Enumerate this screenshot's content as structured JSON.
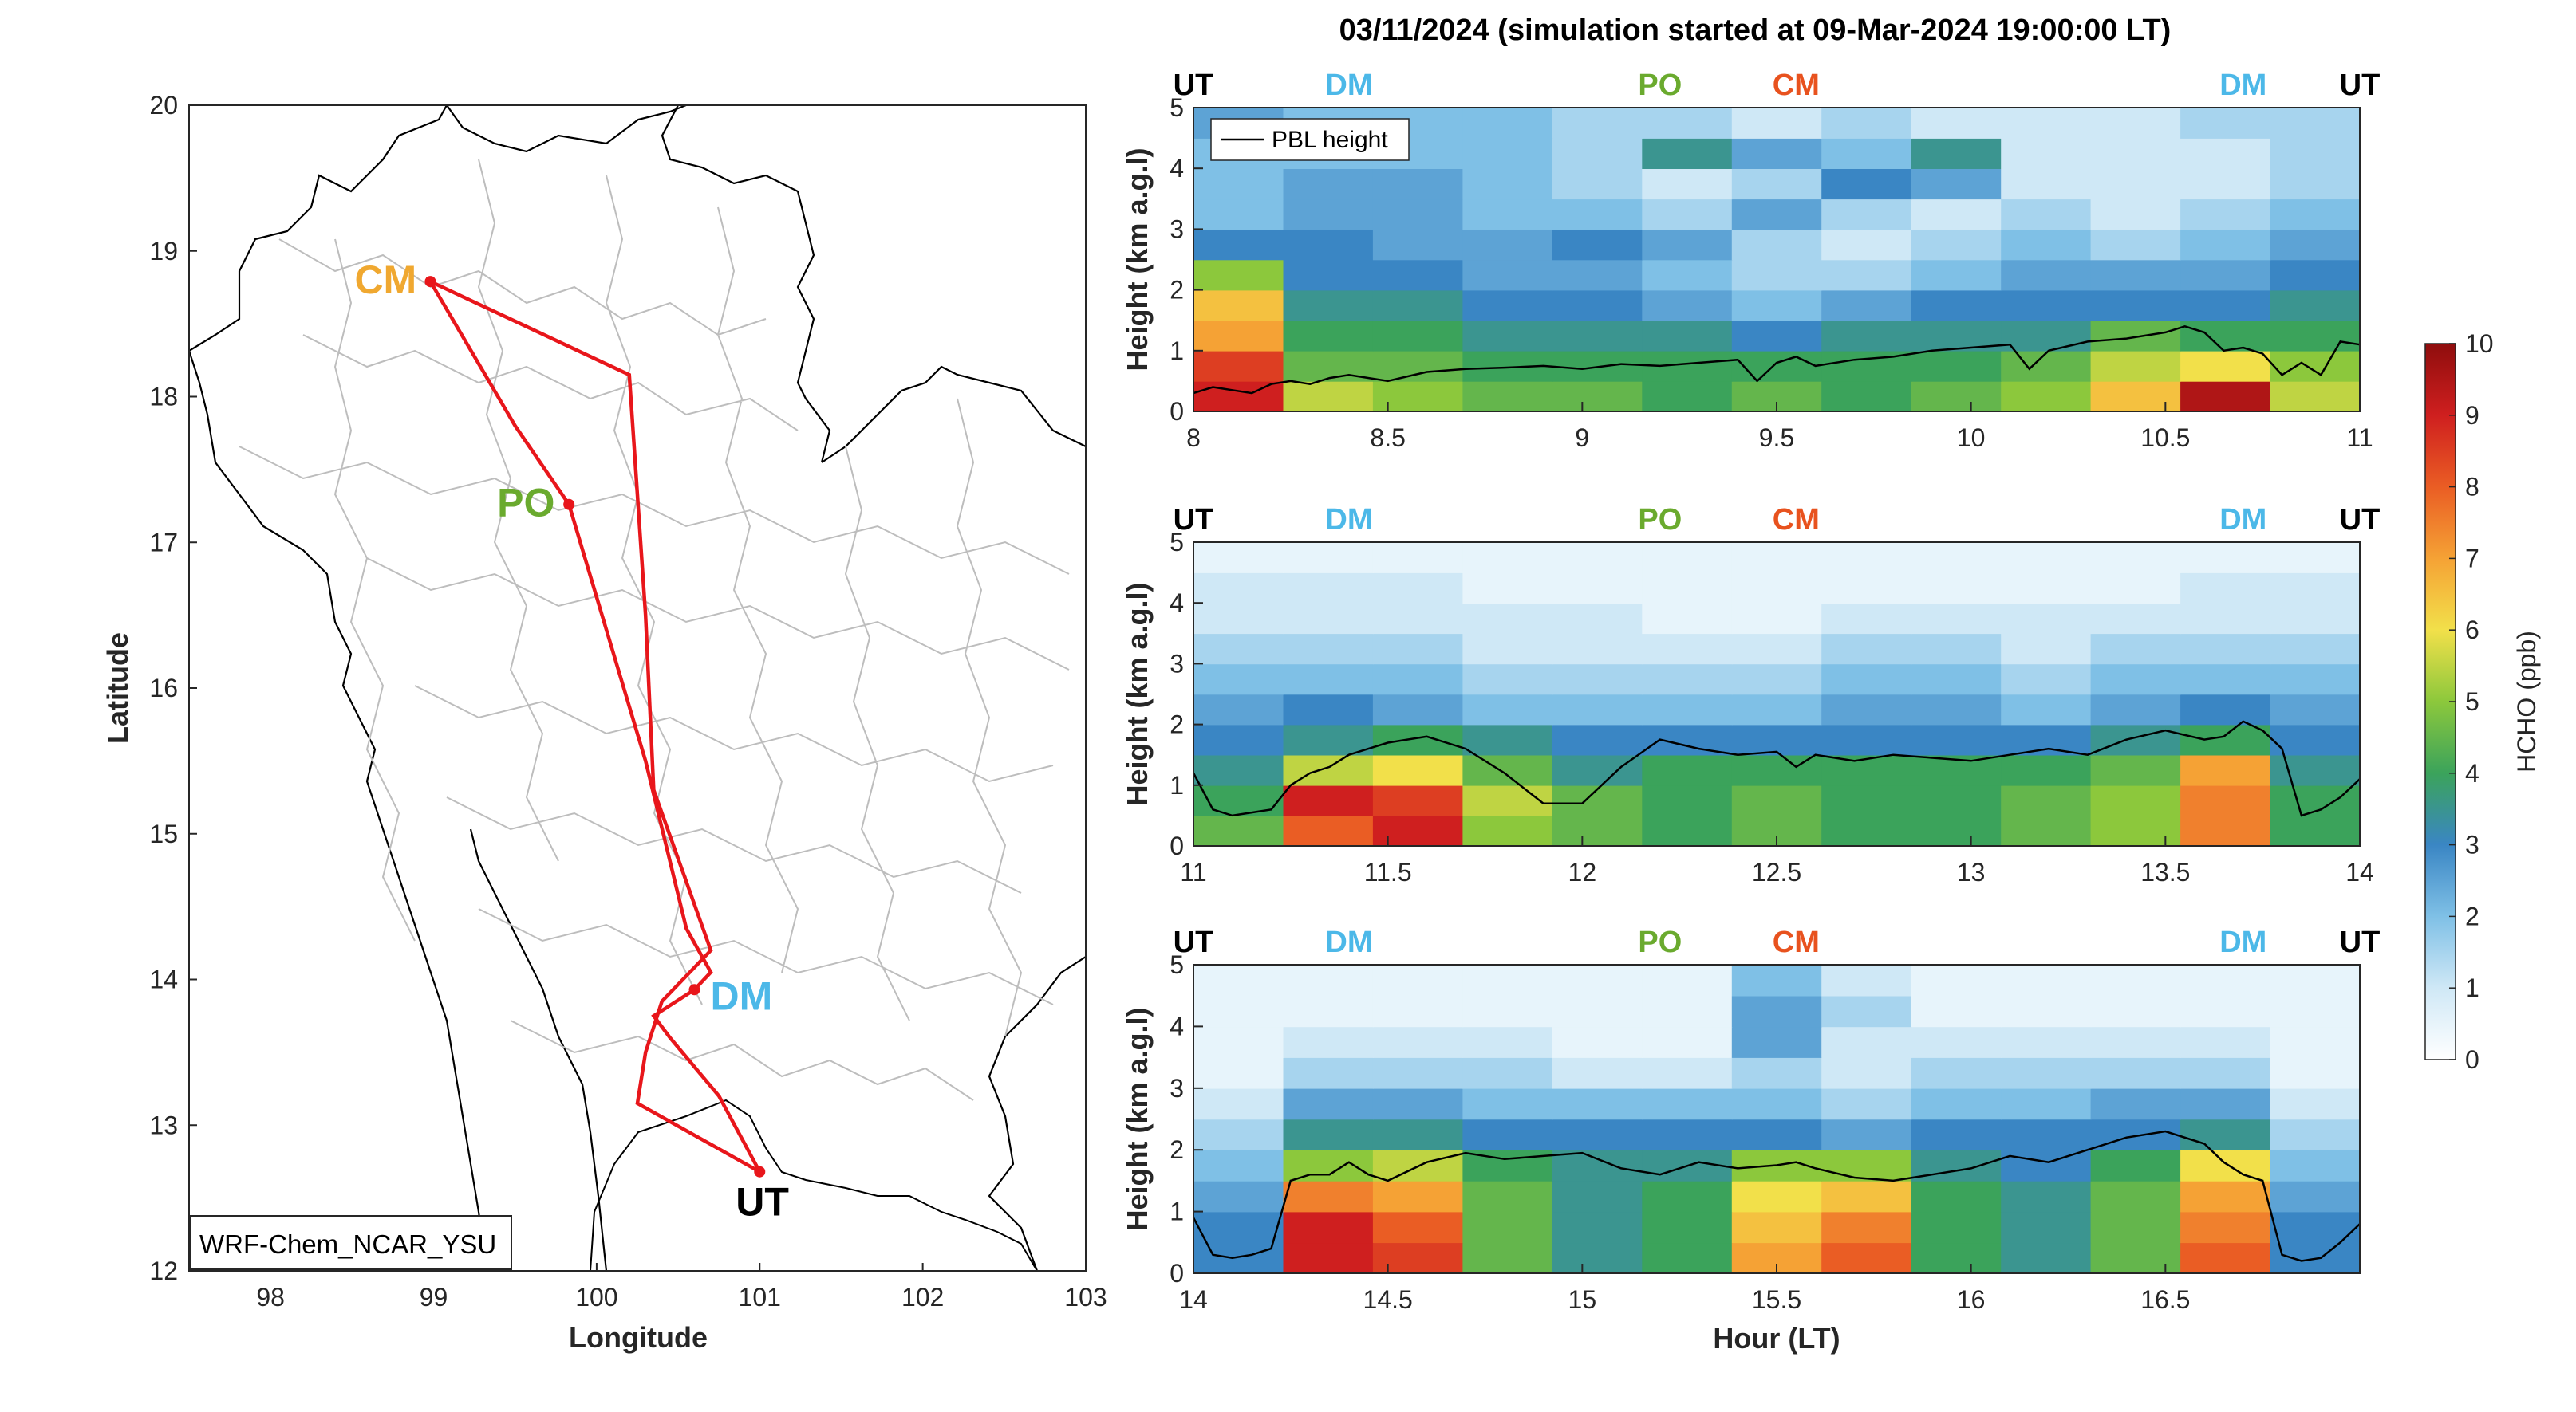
{
  "title": "03/11/2024 (simulation started at 09-Mar-2024 19:00:00 LT)",
  "colors": {
    "route": "#e8161b",
    "CM": "#f0a830",
    "PO": "#6aaa2e",
    "DM": "#4cb8e8",
    "UT": "#000000",
    "CM_top": "#e8521e"
  },
  "map": {
    "xlabel": "Longitude",
    "ylabel": "Latitude",
    "xticks": [
      "98",
      "99",
      "100",
      "101",
      "102",
      "103"
    ],
    "yticks": [
      "12",
      "13",
      "14",
      "15",
      "16",
      "17",
      "18",
      "19",
      "20"
    ],
    "xlim": [
      97.5,
      103
    ],
    "ylim": [
      12,
      20
    ],
    "model_label": "WRF-Chem_NCAR_YSU",
    "sites": [
      {
        "name": "CM",
        "lon": 98.98,
        "lat": 18.79
      },
      {
        "name": "PO",
        "lon": 99.83,
        "lat": 17.26
      },
      {
        "name": "DM",
        "lon": 100.6,
        "lat": 13.93
      },
      {
        "name": "UT",
        "lon": 101.0,
        "lat": 12.68
      }
    ]
  },
  "route_label_row": [
    "UT",
    "DM",
    "PO",
    "CM",
    "DM",
    "UT"
  ],
  "colorbar": {
    "label": "HCHO (ppb)",
    "ticks": [
      "0",
      "1",
      "2",
      "3",
      "4",
      "5",
      "6",
      "7",
      "8",
      "9",
      "10"
    ],
    "range": [
      0,
      10
    ]
  },
  "chart_data": [
    {
      "type": "heatmap",
      "ylabel": "Height (km a.g.l)",
      "xlabel": "",
      "xlim": [
        8,
        11
      ],
      "ylim": [
        0,
        5
      ],
      "xticks": [
        "8",
        "8.5",
        "9",
        "9.5",
        "10",
        "10.5",
        "11"
      ],
      "yticks": [
        "0",
        "1",
        "2",
        "3",
        "4",
        "5"
      ],
      "legend": "PBL height",
      "route_labels": [
        {
          "name": "UT",
          "hour": 8.0
        },
        {
          "name": "DM",
          "hour": 8.4
        },
        {
          "name": "PO",
          "hour": 9.2
        },
        {
          "name": "CM",
          "hour": 9.55
        },
        {
          "name": "DM",
          "hour": 10.7
        },
        {
          "name": "UT",
          "hour": 11.0
        }
      ],
      "pbl": {
        "hours": [
          8.0,
          8.05,
          8.1,
          8.15,
          8.2,
          8.25,
          8.3,
          8.35,
          8.4,
          8.5,
          8.6,
          8.7,
          8.8,
          8.9,
          9.0,
          9.1,
          9.2,
          9.3,
          9.4,
          9.45,
          9.5,
          9.55,
          9.6,
          9.7,
          9.8,
          9.9,
          10.0,
          10.1,
          10.15,
          10.2,
          10.3,
          10.4,
          10.5,
          10.55,
          10.6,
          10.65,
          10.7,
          10.75,
          10.8,
          10.85,
          10.9,
          10.95,
          11.0
        ],
        "heights_km": [
          0.3,
          0.4,
          0.35,
          0.3,
          0.45,
          0.5,
          0.45,
          0.55,
          0.6,
          0.5,
          0.65,
          0.7,
          0.72,
          0.75,
          0.7,
          0.78,
          0.75,
          0.8,
          0.85,
          0.5,
          0.8,
          0.9,
          0.75,
          0.85,
          0.9,
          1.0,
          1.05,
          1.1,
          0.7,
          1.0,
          1.15,
          1.2,
          1.3,
          1.4,
          1.3,
          1.0,
          1.05,
          0.95,
          0.6,
          0.8,
          0.6,
          1.15,
          1.1
        ]
      },
      "hcho_ppb": {
        "hours": [
          8.0,
          8.25,
          8.5,
          8.75,
          9.0,
          9.25,
          9.5,
          9.75,
          10.0,
          10.25,
          10.5,
          10.75,
          11.0
        ],
        "heights_km": [
          0.25,
          0.75,
          1.25,
          1.75,
          2.25,
          2.75,
          3.25,
          3.75,
          4.25,
          4.75
        ],
        "values": [
          [
            9.0,
            5.5,
            5.0,
            4.5,
            4.5,
            4.0,
            4.5,
            4.0,
            4.5,
            5.0,
            6.5,
            9.5,
            5.5
          ],
          [
            8.5,
            4.5,
            4.5,
            4.0,
            4.0,
            4.0,
            4.0,
            4.0,
            4.0,
            4.5,
            5.5,
            6.0,
            5.0
          ],
          [
            7.0,
            4.0,
            4.0,
            3.5,
            3.5,
            3.5,
            3.0,
            3.5,
            3.5,
            3.5,
            4.5,
            4.0,
            4.0
          ],
          [
            6.5,
            3.5,
            3.5,
            3.0,
            3.0,
            2.5,
            2.0,
            2.5,
            3.0,
            3.0,
            3.0,
            3.0,
            3.5
          ],
          [
            5.0,
            3.0,
            3.0,
            2.5,
            2.5,
            2.0,
            1.5,
            1.5,
            2.0,
            2.5,
            2.5,
            2.5,
            3.0
          ],
          [
            3.0,
            3.0,
            2.5,
            2.5,
            3.0,
            2.5,
            1.5,
            1.0,
            1.5,
            2.0,
            1.5,
            2.0,
            2.5
          ],
          [
            2.0,
            2.5,
            2.5,
            2.0,
            2.0,
            1.5,
            2.5,
            1.5,
            1.0,
            1.5,
            1.0,
            1.5,
            2.0
          ],
          [
            2.0,
            2.5,
            2.5,
            2.0,
            1.5,
            1.0,
            1.5,
            3.0,
            2.5,
            1.0,
            1.0,
            1.0,
            1.5
          ],
          [
            2.0,
            2.0,
            2.0,
            2.0,
            1.5,
            3.5,
            2.5,
            2.0,
            3.5,
            1.0,
            1.0,
            1.0,
            1.5
          ],
          [
            2.5,
            2.0,
            2.0,
            2.0,
            1.5,
            1.5,
            1.0,
            1.5,
            1.0,
            1.0,
            1.0,
            1.5,
            1.5
          ]
        ]
      }
    },
    {
      "type": "heatmap",
      "ylabel": "Height (km a.g.l)",
      "xlabel": "",
      "xlim": [
        11,
        14
      ],
      "ylim": [
        0,
        5
      ],
      "xticks": [
        "11",
        "11.5",
        "12",
        "12.5",
        "13",
        "13.5",
        "14"
      ],
      "yticks": [
        "0",
        "1",
        "2",
        "3",
        "4",
        "5"
      ],
      "route_labels": [
        {
          "name": "UT",
          "hour": 11.0
        },
        {
          "name": "DM",
          "hour": 11.4
        },
        {
          "name": "PO",
          "hour": 12.2
        },
        {
          "name": "CM",
          "hour": 12.55
        },
        {
          "name": "DM",
          "hour": 13.7
        },
        {
          "name": "UT",
          "hour": 14.0
        }
      ],
      "pbl": {
        "hours": [
          11.0,
          11.05,
          11.1,
          11.15,
          11.2,
          11.25,
          11.3,
          11.35,
          11.4,
          11.45,
          11.5,
          11.6,
          11.7,
          11.8,
          11.9,
          12.0,
          12.1,
          12.2,
          12.3,
          12.4,
          12.5,
          12.55,
          12.6,
          12.7,
          12.8,
          12.9,
          13.0,
          13.1,
          13.2,
          13.3,
          13.4,
          13.5,
          13.6,
          13.65,
          13.7,
          13.75,
          13.8,
          13.85,
          13.9,
          13.95,
          14.0
        ],
        "heights_km": [
          1.2,
          0.6,
          0.5,
          0.55,
          0.6,
          1.0,
          1.2,
          1.3,
          1.5,
          1.6,
          1.7,
          1.8,
          1.6,
          1.2,
          0.7,
          0.7,
          1.3,
          1.75,
          1.6,
          1.5,
          1.55,
          1.3,
          1.5,
          1.4,
          1.5,
          1.45,
          1.4,
          1.5,
          1.6,
          1.5,
          1.75,
          1.9,
          1.75,
          1.8,
          2.05,
          1.9,
          1.6,
          0.5,
          0.6,
          0.8,
          1.1
        ]
      },
      "hcho_ppb": {
        "hours": [
          11.0,
          11.25,
          11.5,
          11.75,
          12.0,
          12.25,
          12.5,
          12.75,
          13.0,
          13.25,
          13.5,
          13.75,
          14.0
        ],
        "heights_km": [
          0.25,
          0.75,
          1.25,
          1.75,
          2.25,
          2.75,
          3.25,
          3.75,
          4.25,
          4.75
        ],
        "values": [
          [
            4.5,
            8.0,
            9.0,
            5.0,
            4.5,
            4.0,
            4.5,
            4.0,
            4.0,
            4.5,
            5.0,
            7.5,
            4.0
          ],
          [
            4.0,
            9.0,
            8.5,
            5.5,
            4.5,
            4.0,
            4.5,
            4.0,
            4.0,
            4.5,
            5.0,
            7.5,
            4.0
          ],
          [
            3.5,
            5.5,
            6.0,
            4.5,
            3.5,
            4.0,
            4.0,
            4.0,
            4.0,
            4.0,
            4.5,
            7.0,
            3.5
          ],
          [
            3.0,
            3.5,
            4.0,
            3.5,
            3.0,
            3.0,
            3.0,
            3.0,
            3.0,
            3.0,
            3.5,
            4.0,
            3.0
          ],
          [
            2.5,
            3.0,
            2.5,
            2.0,
            2.0,
            2.0,
            2.0,
            2.5,
            2.5,
            2.0,
            2.5,
            3.0,
            2.5
          ],
          [
            2.0,
            2.0,
            2.0,
            1.5,
            1.5,
            1.5,
            1.5,
            2.0,
            2.0,
            1.5,
            2.0,
            2.0,
            2.0
          ],
          [
            1.5,
            1.5,
            1.5,
            1.0,
            1.0,
            1.0,
            1.0,
            1.5,
            1.5,
            1.0,
            1.5,
            1.5,
            1.5
          ],
          [
            1.0,
            1.0,
            1.0,
            1.0,
            1.0,
            0.5,
            0.5,
            1.0,
            1.0,
            1.0,
            1.0,
            1.0,
            1.0
          ],
          [
            1.0,
            1.0,
            1.0,
            0.5,
            0.5,
            0.5,
            0.5,
            0.5,
            0.5,
            0.5,
            0.5,
            1.0,
            1.0
          ],
          [
            0.5,
            0.5,
            0.5,
            0.5,
            0.5,
            0.5,
            0.5,
            0.5,
            0.5,
            0.5,
            0.5,
            0.5,
            0.5
          ]
        ]
      }
    },
    {
      "type": "heatmap",
      "ylabel": "Height (km a.g.l)",
      "xlabel": "Hour (LT)",
      "xlim": [
        14,
        17
      ],
      "ylim": [
        0,
        5
      ],
      "xticks": [
        "14",
        "14.5",
        "15",
        "15.5",
        "16",
        "16.5"
      ],
      "yticks": [
        "0",
        "1",
        "2",
        "3",
        "4",
        "5"
      ],
      "route_labels": [
        {
          "name": "UT",
          "hour": 14.0
        },
        {
          "name": "DM",
          "hour": 14.4
        },
        {
          "name": "PO",
          "hour": 15.2
        },
        {
          "name": "CM",
          "hour": 15.55
        },
        {
          "name": "DM",
          "hour": 16.7
        },
        {
          "name": "UT",
          "hour": 17.0
        }
      ],
      "pbl": {
        "hours": [
          14.0,
          14.05,
          14.1,
          14.15,
          14.2,
          14.25,
          14.3,
          14.35,
          14.4,
          14.45,
          14.5,
          14.6,
          14.7,
          14.8,
          14.9,
          15.0,
          15.1,
          15.2,
          15.3,
          15.4,
          15.5,
          15.55,
          15.6,
          15.7,
          15.8,
          15.9,
          16.0,
          16.1,
          16.2,
          16.3,
          16.4,
          16.5,
          16.6,
          16.65,
          16.7,
          16.75,
          16.8,
          16.85,
          16.9,
          16.95,
          17.0
        ],
        "heights_km": [
          0.9,
          0.3,
          0.25,
          0.3,
          0.4,
          1.5,
          1.6,
          1.6,
          1.8,
          1.6,
          1.5,
          1.8,
          1.95,
          1.85,
          1.9,
          1.95,
          1.7,
          1.6,
          1.8,
          1.7,
          1.75,
          1.8,
          1.7,
          1.55,
          1.5,
          1.6,
          1.7,
          1.9,
          1.8,
          2.0,
          2.2,
          2.3,
          2.1,
          1.8,
          1.6,
          1.5,
          0.3,
          0.2,
          0.25,
          0.5,
          0.8
        ]
      },
      "hcho_ppb": {
        "hours": [
          14.0,
          14.25,
          14.5,
          14.75,
          15.0,
          15.25,
          15.5,
          15.75,
          16.0,
          16.25,
          16.5,
          16.75,
          17.0
        ],
        "heights_km": [
          0.25,
          0.75,
          1.25,
          1.75,
          2.25,
          2.75,
          3.25,
          3.75,
          4.25,
          4.75
        ],
        "values": [
          [
            3.0,
            9.0,
            8.5,
            4.5,
            3.5,
            4.0,
            7.0,
            8.0,
            4.0,
            3.5,
            4.5,
            8.0,
            3.0
          ],
          [
            3.0,
            9.0,
            8.0,
            4.5,
            3.5,
            4.0,
            6.5,
            7.5,
            4.0,
            3.5,
            4.5,
            7.5,
            3.0
          ],
          [
            2.5,
            7.5,
            7.0,
            4.5,
            3.5,
            4.0,
            6.0,
            6.5,
            4.0,
            3.5,
            4.5,
            7.0,
            2.5
          ],
          [
            2.0,
            5.0,
            5.5,
            4.0,
            3.5,
            3.5,
            5.0,
            5.0,
            3.5,
            3.0,
            4.0,
            6.0,
            2.0
          ],
          [
            1.5,
            3.5,
            3.5,
            3.0,
            3.0,
            3.0,
            3.0,
            2.5,
            3.0,
            3.0,
            3.0,
            3.5,
            1.5
          ],
          [
            1.0,
            2.5,
            2.5,
            2.0,
            2.0,
            2.0,
            2.0,
            1.5,
            2.0,
            2.0,
            2.5,
            2.5,
            1.0
          ],
          [
            0.5,
            1.5,
            1.5,
            1.5,
            1.0,
            1.0,
            1.5,
            1.0,
            1.5,
            1.5,
            1.5,
            1.5,
            0.5
          ],
          [
            0.5,
            1.0,
            1.0,
            1.0,
            0.5,
            0.5,
            2.5,
            1.0,
            1.0,
            1.0,
            1.0,
            1.0,
            0.5
          ],
          [
            0.5,
            0.5,
            0.5,
            0.5,
            0.5,
            0.5,
            2.5,
            1.5,
            0.5,
            0.5,
            0.5,
            0.5,
            0.5
          ],
          [
            0.5,
            0.5,
            0.5,
            0.5,
            0.5,
            0.5,
            2.0,
            1.0,
            0.5,
            0.5,
            0.5,
            0.5,
            0.5
          ]
        ]
      }
    }
  ]
}
